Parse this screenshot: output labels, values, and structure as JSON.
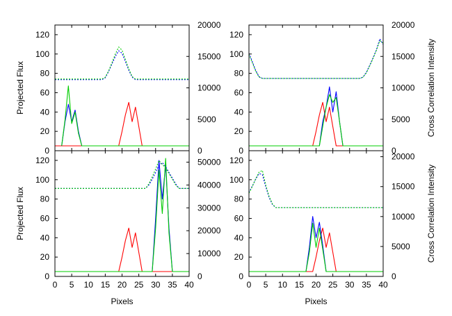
{
  "chart_data": [
    {
      "type": "line",
      "xlabel": "",
      "ylabel": "Projected Flux",
      "y2label": "",
      "xlim": [
        0,
        40
      ],
      "ylim": [
        0,
        130
      ],
      "y2lim": [
        0,
        20000
      ],
      "xticks": [
        "0",
        "5",
        "10",
        "15",
        "20",
        "25",
        "30",
        "35",
        "40"
      ],
      "yticks": [
        "0",
        "20",
        "40",
        "60",
        "80",
        "100",
        "120"
      ],
      "y2ticks": [
        "0",
        "5000",
        "10000",
        "15000",
        "20000"
      ],
      "series": [
        {
          "color": "#ff0000",
          "style": "solid",
          "axis": "left",
          "x": [
            0,
            19,
            20,
            21,
            22,
            23,
            24,
            25,
            26,
            27,
            40
          ],
          "y": [
            5,
            5,
            20,
            37,
            50,
            30,
            45,
            25,
            5,
            5,
            5
          ]
        },
        {
          "color": "#0000ff",
          "style": "solid",
          "axis": "left",
          "x": [
            2,
            3,
            4,
            5,
            6,
            7,
            8,
            40
          ],
          "y": [
            5,
            30,
            48,
            30,
            42,
            20,
            5,
            5
          ]
        },
        {
          "color": "#00cc00",
          "style": "solid",
          "axis": "left",
          "x": [
            2,
            3,
            4,
            5,
            6,
            7,
            8,
            40
          ],
          "y": [
            5,
            32,
            67,
            28,
            40,
            18,
            5,
            5
          ]
        },
        {
          "color": "#0000ff",
          "style": "dotted",
          "axis": "right",
          "x": [
            0,
            14,
            15,
            16,
            17,
            18,
            19,
            20,
            21,
            22,
            23,
            24,
            40
          ],
          "y": [
            11300,
            11300,
            11600,
            12600,
            13800,
            15000,
            15900,
            15500,
            14200,
            12800,
            11700,
            11300,
            11300
          ]
        },
        {
          "color": "#00cc00",
          "style": "dotted",
          "axis": "right",
          "x": [
            0,
            14,
            15,
            16,
            17,
            18,
            19,
            20,
            21,
            22,
            23,
            24,
            40
          ],
          "y": [
            11400,
            11400,
            11700,
            12700,
            14000,
            15400,
            16500,
            16000,
            14500,
            13000,
            11800,
            11400,
            11400
          ]
        }
      ]
    },
    {
      "type": "line",
      "xlabel": "",
      "ylabel": "",
      "y2label": "Cross Correlation Intensity",
      "xlim": [
        0,
        40
      ],
      "ylim": [
        0,
        130
      ],
      "y2lim": [
        0,
        20000
      ],
      "xticks": [
        "0",
        "5",
        "10",
        "15",
        "20",
        "25",
        "30",
        "35",
        "40"
      ],
      "yticks": [
        "0",
        "20",
        "40",
        "60",
        "80",
        "100",
        "120"
      ],
      "y2ticks": [
        "0",
        "5000",
        "10000",
        "15000",
        "20000"
      ],
      "series": [
        {
          "color": "#ff0000",
          "style": "solid",
          "axis": "left",
          "x": [
            0,
            19,
            20,
            21,
            22,
            23,
            24,
            25,
            26,
            27,
            40
          ],
          "y": [
            5,
            5,
            20,
            37,
            50,
            30,
            45,
            25,
            5,
            5,
            5
          ]
        },
        {
          "color": "#0000ff",
          "style": "solid",
          "axis": "left",
          "x": [
            0,
            21,
            22,
            23,
            24,
            25,
            26,
            27,
            28,
            40
          ],
          "y": [
            5,
            5,
            30,
            45,
            66,
            40,
            61,
            30,
            5,
            5
          ]
        },
        {
          "color": "#00cc00",
          "style": "solid",
          "axis": "left",
          "x": [
            0,
            21,
            22,
            23,
            24,
            25,
            26,
            27,
            28,
            40
          ],
          "y": [
            5,
            5,
            25,
            45,
            58,
            50,
            55,
            30,
            5,
            5
          ]
        },
        {
          "color": "#0000ff",
          "style": "dotted",
          "axis": "right",
          "x": [
            0,
            1,
            2,
            3,
            4,
            33,
            34,
            35,
            36,
            37,
            38,
            39,
            40
          ],
          "y": [
            15500,
            14200,
            12800,
            11800,
            11500,
            11500,
            11700,
            12500,
            13600,
            14800,
            16100,
            17800,
            16900
          ]
        },
        {
          "color": "#00cc00",
          "style": "dotted",
          "axis": "right",
          "x": [
            0,
            1,
            2,
            3,
            4,
            33,
            34,
            35,
            36,
            37,
            38,
            39,
            40
          ],
          "y": [
            15300,
            14000,
            12700,
            11700,
            11500,
            11500,
            11700,
            12400,
            13500,
            14700,
            16000,
            17500,
            17100
          ]
        }
      ]
    },
    {
      "type": "line",
      "xlabel": "Pixels",
      "ylabel": "Projected Flux",
      "y2label": "",
      "xlim": [
        0,
        40
      ],
      "ylim": [
        0,
        130
      ],
      "y2lim": [
        0,
        55000
      ],
      "xticks": [
        "0",
        "5",
        "10",
        "15",
        "20",
        "25",
        "30",
        "35",
        "40"
      ],
      "yticks": [
        "0",
        "20",
        "40",
        "60",
        "80",
        "100",
        "120"
      ],
      "y2ticks": [
        "0",
        "10000",
        "20000",
        "30000",
        "40000",
        "50000"
      ],
      "series": [
        {
          "color": "#ff0000",
          "style": "solid",
          "axis": "left",
          "x": [
            0,
            19,
            20,
            21,
            22,
            23,
            24,
            25,
            26,
            27,
            40
          ],
          "y": [
            5,
            5,
            20,
            37,
            50,
            30,
            45,
            25,
            5,
            5,
            5
          ]
        },
        {
          "color": "#0000ff",
          "style": "solid",
          "axis": "left",
          "x": [
            0,
            29,
            30,
            31,
            32,
            33,
            34,
            35,
            40
          ],
          "y": [
            5,
            5,
            60,
            120,
            80,
            115,
            50,
            5,
            5
          ]
        },
        {
          "color": "#00cc00",
          "style": "solid",
          "axis": "left",
          "x": [
            0,
            29,
            30,
            31,
            32,
            33,
            34,
            35,
            40
          ],
          "y": [
            5,
            5,
            50,
            110,
            65,
            122,
            45,
            5,
            5
          ]
        },
        {
          "color": "#0000ff",
          "style": "dotted",
          "axis": "right",
          "x": [
            0,
            27,
            28,
            29,
            30,
            31,
            32,
            33,
            34,
            35,
            36,
            37,
            38,
            40
          ],
          "y": [
            38500,
            38500,
            40000,
            42500,
            45500,
            48700,
            49800,
            48000,
            45500,
            43000,
            40500,
            38500,
            38500,
            38500
          ]
        },
        {
          "color": "#00cc00",
          "style": "dotted",
          "axis": "right",
          "x": [
            0,
            27,
            28,
            29,
            30,
            31,
            32,
            33,
            34,
            35,
            36,
            37,
            38,
            40
          ],
          "y": [
            38500,
            38500,
            40500,
            43500,
            47000,
            50700,
            49000,
            47500,
            45000,
            42500,
            40000,
            38500,
            38500,
            38500
          ]
        }
      ]
    },
    {
      "type": "line",
      "xlabel": "Pixels",
      "ylabel": "",
      "y2label": "Cross Correlation Intensity",
      "xlim": [
        0,
        40
      ],
      "ylim": [
        0,
        130
      ],
      "y2lim": [
        0,
        21000
      ],
      "xticks": [
        "0",
        "5",
        "10",
        "15",
        "20",
        "25",
        "30",
        "35",
        "40"
      ],
      "yticks": [
        "0",
        "20",
        "40",
        "60",
        "80",
        "100",
        "120"
      ],
      "y2ticks": [
        "0",
        "5000",
        "10000",
        "15000",
        "20000"
      ],
      "series": [
        {
          "color": "#ff0000",
          "style": "solid",
          "axis": "left",
          "x": [
            0,
            19,
            20,
            21,
            22,
            23,
            24,
            25,
            26,
            27,
            40
          ],
          "y": [
            5,
            5,
            20,
            37,
            50,
            30,
            45,
            25,
            5,
            5,
            5
          ]
        },
        {
          "color": "#0000ff",
          "style": "solid",
          "axis": "left",
          "x": [
            0,
            17,
            18,
            19,
            20,
            21,
            22,
            23,
            40
          ],
          "y": [
            5,
            5,
            30,
            62,
            40,
            56,
            32,
            5,
            5
          ]
        },
        {
          "color": "#00cc00",
          "style": "solid",
          "axis": "left",
          "x": [
            0,
            17,
            18,
            19,
            20,
            21,
            22,
            23,
            40
          ],
          "y": [
            5,
            5,
            25,
            55,
            30,
            50,
            28,
            5,
            5
          ]
        },
        {
          "color": "#0000ff",
          "style": "dotted",
          "axis": "right",
          "x": [
            0,
            1,
            2,
            3,
            4,
            5,
            6,
            7,
            8,
            40
          ],
          "y": [
            14000,
            15100,
            16200,
            17200,
            17000,
            15000,
            13200,
            12000,
            11500,
            11500
          ]
        },
        {
          "color": "#00cc00",
          "style": "dotted",
          "axis": "right",
          "x": [
            0,
            1,
            2,
            3,
            4,
            5,
            6,
            7,
            8,
            40
          ],
          "y": [
            13900,
            15000,
            16300,
            17400,
            17700,
            15300,
            13400,
            12100,
            11500,
            11500
          ]
        }
      ]
    }
  ]
}
